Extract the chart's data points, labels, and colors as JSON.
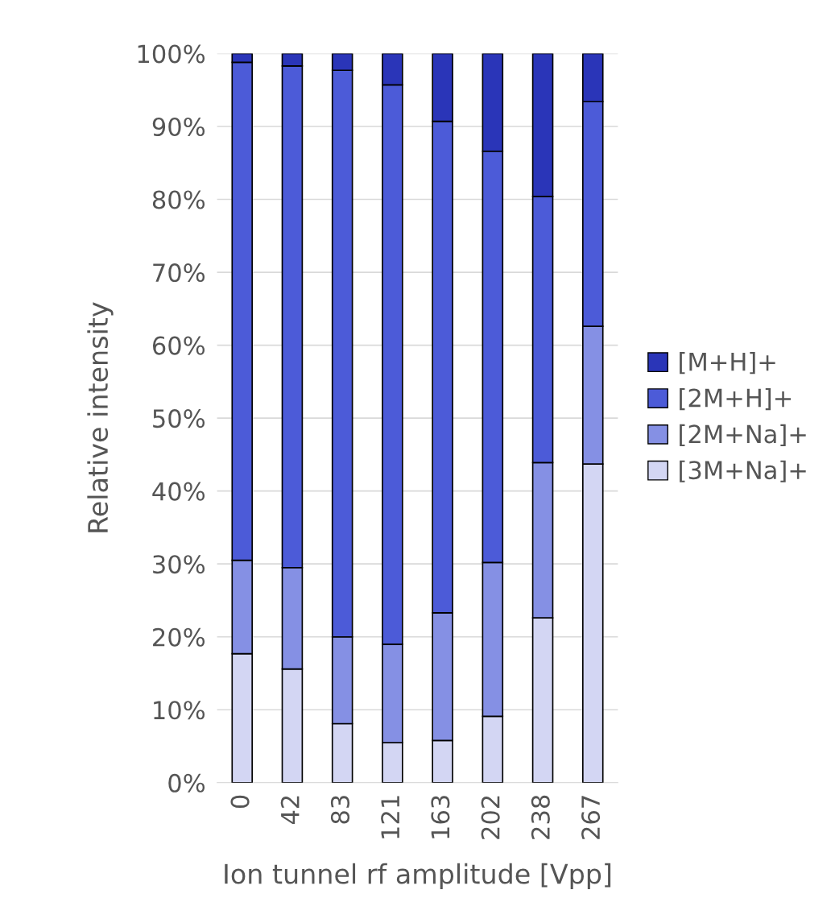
{
  "chart_data": {
    "type": "bar",
    "stacked": true,
    "xlabel": "Ion tunnel rf amplitude [Vpp]",
    "ylabel": "Relative intensity",
    "categories": [
      "0",
      "42",
      "83",
      "121",
      "163",
      "202",
      "238",
      "267"
    ],
    "series": [
      {
        "name": "[3M+Na]+",
        "color": "#d3d6f3",
        "values": [
          17.7,
          15.6,
          8.1,
          5.5,
          5.8,
          9.1,
          22.6,
          43.7
        ]
      },
      {
        "name": "[2M+Na]+",
        "color": "#8590e4",
        "values": [
          12.8,
          13.9,
          11.9,
          13.5,
          17.5,
          21.1,
          21.3,
          18.9
        ]
      },
      {
        "name": "[2M+H]+",
        "color": "#4c5bd8",
        "values": [
          68.3,
          68.8,
          77.7,
          76.7,
          67.4,
          56.4,
          36.5,
          30.8
        ]
      },
      {
        "name": "[M+H]+",
        "color": "#2a35b8",
        "values": [
          1.2,
          1.7,
          2.3,
          4.3,
          9.3,
          13.4,
          19.6,
          6.6
        ]
      }
    ],
    "ylim": [
      0,
      100
    ],
    "yticks": [
      {
        "value": 0,
        "label": "0%"
      },
      {
        "value": 10,
        "label": "10%"
      },
      {
        "value": 20,
        "label": "20%"
      },
      {
        "value": 30,
        "label": "30%"
      },
      {
        "value": 40,
        "label": "40%"
      },
      {
        "value": 50,
        "label": "50%"
      },
      {
        "value": 60,
        "label": "60%"
      },
      {
        "value": 70,
        "label": "70%"
      },
      {
        "value": 80,
        "label": "80%"
      },
      {
        "value": 90,
        "label": "90%"
      },
      {
        "value": 100,
        "label": "100%"
      }
    ],
    "grid": "y",
    "legend": "right"
  }
}
